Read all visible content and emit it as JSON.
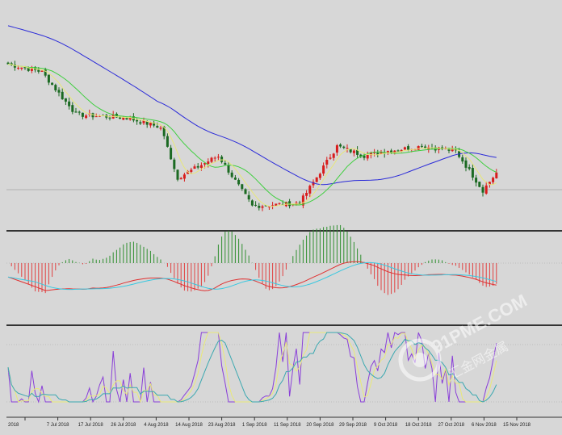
{
  "chart_data": {
    "type": "candlestick",
    "grid": false,
    "colors": {
      "background": "#d7d7d7",
      "bull": "#d81c1c",
      "bear": "#1b6a22",
      "ma_slow": "#2a2ad8",
      "ma_mid": "#3fcf3f",
      "ma_fast": "#e7e77a",
      "macd_hist_pos": "#2f8f2f",
      "macd_hist_neg": "#e04040",
      "macd_line": "#e03030",
      "signal_line": "#38c8e0",
      "stoch_main": "#8a3fd8",
      "stoch_sig1": "#e9e978",
      "stoch_sig2": "#3aa8b0",
      "separator": "#333333"
    },
    "x_tick_labels": [
      "2018",
      "7 Jul 2018",
      "17 Jul 2018",
      "26 Jul 2018",
      "4 Aug 2018",
      "14 Aug 2018",
      "23 Aug 2018",
      "1 Sep 2018",
      "11 Sep 2018",
      "20 Sep 2018",
      "29 Sep 2018",
      "9 Oct 2018",
      "18 Oct 2018",
      "27 Oct 2018",
      "6 Nov 2018",
      "15 Nov 2018"
    ],
    "price_segments": [
      {
        "from": 0,
        "to": 10,
        "start": 190,
        "end": 185
      },
      {
        "from": 10,
        "to": 20,
        "start": 185,
        "end": 158
      },
      {
        "from": 20,
        "to": 35,
        "start": 158,
        "end": 156
      },
      {
        "from": 35,
        "to": 45,
        "start": 156,
        "end": 150
      },
      {
        "from": 45,
        "to": 50,
        "start": 150,
        "end": 118
      },
      {
        "from": 50,
        "to": 62,
        "start": 118,
        "end": 132
      },
      {
        "from": 62,
        "to": 72,
        "start": 132,
        "end": 100
      },
      {
        "from": 72,
        "to": 86,
        "start": 100,
        "end": 102
      },
      {
        "from": 86,
        "to": 97,
        "start": 102,
        "end": 138
      },
      {
        "from": 97,
        "to": 105,
        "start": 138,
        "end": 132
      },
      {
        "from": 105,
        "to": 112,
        "start": 132,
        "end": 135
      },
      {
        "from": 112,
        "to": 122,
        "start": 135,
        "end": 138
      },
      {
        "from": 122,
        "to": 132,
        "start": 138,
        "end": 135
      },
      {
        "from": 132,
        "to": 140,
        "start": 135,
        "end": 110
      },
      {
        "from": 140,
        "to": 145,
        "start": 110,
        "end": 124
      }
    ],
    "panels": [
      {
        "name": "price",
        "indicators": [
          "MA slow",
          "MA mid",
          "MA fast"
        ]
      },
      {
        "name": "macd",
        "indicators": [
          "histogram",
          "main",
          "signal"
        ]
      },
      {
        "name": "stochastic",
        "indicators": [
          "%K",
          "%D",
          "slow"
        ]
      }
    ]
  },
  "watermark": {
    "text": "91PME.COM",
    "subtext": "汇金网金属"
  }
}
